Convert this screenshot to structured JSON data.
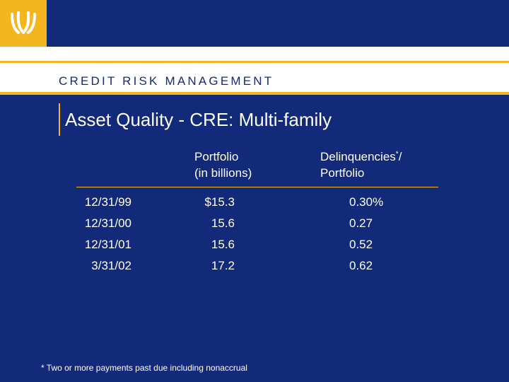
{
  "header": {
    "section_title": "CREDIT RISK MANAGEMENT",
    "brand_color": "#132a7a",
    "accent_color": "#f3b61f",
    "logo_icon": "bank-logo-icon"
  },
  "slide": {
    "title": "Asset Quality - CRE: Multi-family"
  },
  "table": {
    "col_portfolio_line1": "Portfolio",
    "col_portfolio_line2": "(in billions)",
    "col_delinq_line1": "Delinquencies",
    "col_delinq_marker": "*",
    "col_delinq_slash": "/",
    "col_delinq_line2": "Portfolio",
    "rows": [
      {
        "date": "12/31/99",
        "portfolio": "$15.3",
        "delinquencies": "0.30%"
      },
      {
        "date": "12/31/00",
        "portfolio": "15.6",
        "delinquencies": "0.27"
      },
      {
        "date": "12/31/01",
        "portfolio": "15.6",
        "delinquencies": "0.52"
      },
      {
        "date": "3/31/02",
        "portfolio": "17.2",
        "delinquencies": "0.62"
      }
    ]
  },
  "footnote": "*  Two or more payments past due including nonaccrual"
}
